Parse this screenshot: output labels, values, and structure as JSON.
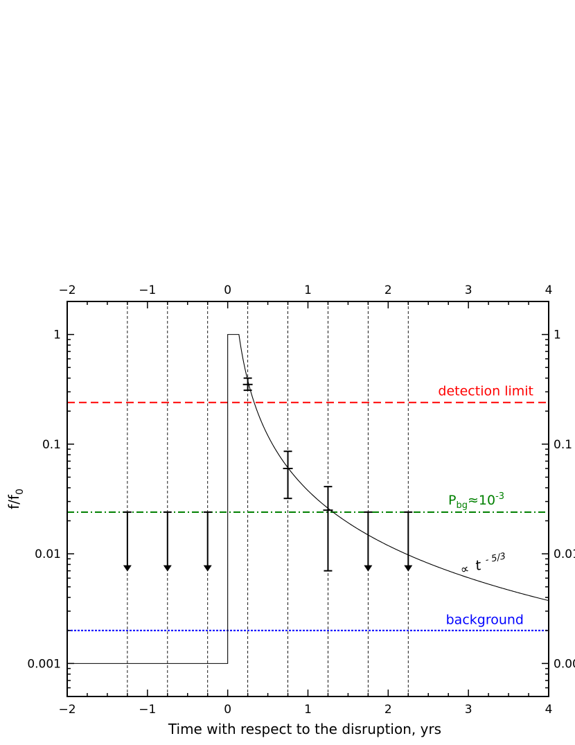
{
  "chart_data": {
    "type": "scatter",
    "xlabel": "Time with respect to the disruption, yrs",
    "ylabel_main": "f/f",
    "ylabel_sub": "0",
    "xlim": [
      -2,
      4
    ],
    "ylim": [
      0.0005,
      2.0
    ],
    "yscale": "log",
    "x_ticks": [
      -2,
      -1,
      0,
      1,
      2,
      3,
      4
    ],
    "x_tick_labels": [
      "−2",
      "−1",
      "0",
      "1",
      "2",
      "3",
      "4"
    ],
    "y_ticks": [
      0.001,
      0.01,
      0.1,
      1
    ],
    "y_tick_labels": [
      "0.001",
      "0.01",
      "0.1",
      "1"
    ],
    "y_tick_labels_right": [
      "0.00",
      "0.01",
      "0.1",
      "1"
    ],
    "grid": false,
    "detections": [
      {
        "x": 0.25,
        "y": 0.35,
        "yerr_low": 0.31,
        "yerr_high": 0.4
      },
      {
        "x": 0.75,
        "y": 0.06,
        "yerr_low": 0.032,
        "yerr_high": 0.086
      },
      {
        "x": 1.25,
        "y": 0.025,
        "yerr_low": 0.007,
        "yerr_high": 0.041
      }
    ],
    "upper_limits": [
      {
        "x": -1.25,
        "y_top": 0.024,
        "y_bottom": 0.007
      },
      {
        "x": -0.75,
        "y_top": 0.024,
        "y_bottom": 0.007
      },
      {
        "x": -0.25,
        "y_top": 0.024,
        "y_bottom": 0.007
      },
      {
        "x": 1.75,
        "y_top": 0.024,
        "y_bottom": 0.007
      },
      {
        "x": 2.25,
        "y_top": 0.024,
        "y_bottom": 0.007
      }
    ],
    "vertical_dashed_lines": [
      -1.25,
      -0.75,
      -0.25,
      0.25,
      0.75,
      1.25,
      1.75,
      2.25
    ],
    "model_curve": {
      "pre_level": 0.001,
      "rise_at": 0.0,
      "plateau_level": 1.0,
      "plateau_end": 0.14,
      "decay_exponent": -1.6667
    },
    "hlines": [
      {
        "name": "detection-limit",
        "y": 0.24,
        "color": "#ff0000",
        "style": "dashed",
        "label": "detection limit"
      },
      {
        "name": "pbg",
        "y": 0.024,
        "color": "#008000",
        "style": "dashdot",
        "label": "P",
        "label_sub": "bg",
        "label_mid": "≈10",
        "label_sup": "-3"
      },
      {
        "name": "background",
        "y": 0.002,
        "color": "#0000ff",
        "style": "dotted",
        "label": "background"
      }
    ],
    "annotation": {
      "prefix": "∝",
      "t": "t",
      "exponent": "- 5/3"
    }
  }
}
